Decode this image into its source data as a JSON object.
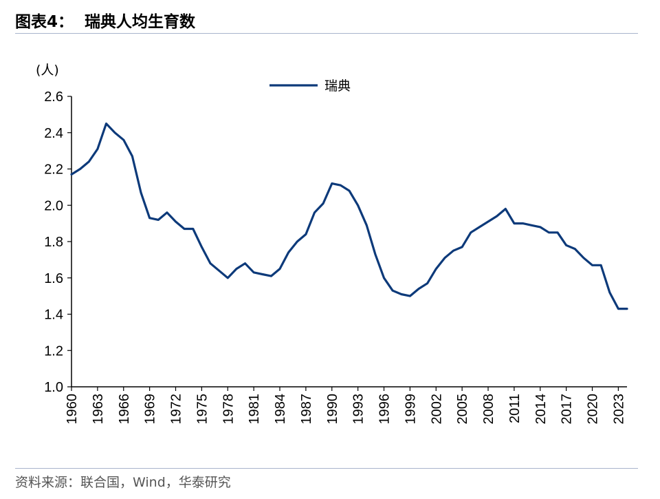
{
  "header": {
    "title": "图表4：  瑞典人均生育数"
  },
  "footer": {
    "source": "资料来源：联合国，Wind，华泰研究"
  },
  "chart_data": {
    "type": "line",
    "title": "瑞典人均生育数",
    "unit_label": "(人)",
    "ylim": [
      1.0,
      2.6
    ],
    "y_ticks": [
      "1.0",
      "1.2",
      "1.4",
      "1.6",
      "1.8",
      "2.0",
      "2.2",
      "2.4",
      "2.6"
    ],
    "x_ticks": [
      "1960",
      "1963",
      "1966",
      "1969",
      "1972",
      "1975",
      "1978",
      "1981",
      "1984",
      "1987",
      "1990",
      "1993",
      "1996",
      "1999",
      "2002",
      "2005",
      "2008",
      "2011",
      "2014",
      "2017",
      "2020",
      "2023"
    ],
    "legend_position": "top-center",
    "grid": false,
    "series": [
      {
        "name": "瑞典",
        "color": "#0d3a7a",
        "x": [
          1960,
          1961,
          1962,
          1963,
          1964,
          1965,
          1966,
          1967,
          1968,
          1969,
          1970,
          1971,
          1972,
          1973,
          1974,
          1975,
          1976,
          1977,
          1978,
          1979,
          1980,
          1981,
          1982,
          1983,
          1984,
          1985,
          1986,
          1987,
          1988,
          1989,
          1990,
          1991,
          1992,
          1993,
          1994,
          1995,
          1996,
          1997,
          1998,
          1999,
          2000,
          2001,
          2002,
          2003,
          2004,
          2005,
          2006,
          2007,
          2008,
          2009,
          2010,
          2011,
          2012,
          2013,
          2014,
          2015,
          2016,
          2017,
          2018,
          2019,
          2020,
          2021,
          2022,
          2023,
          2024
        ],
        "values": [
          2.17,
          2.2,
          2.24,
          2.31,
          2.45,
          2.4,
          2.36,
          2.27,
          2.07,
          1.93,
          1.92,
          1.96,
          1.91,
          1.87,
          1.87,
          1.77,
          1.68,
          1.64,
          1.6,
          1.65,
          1.68,
          1.63,
          1.62,
          1.61,
          1.65,
          1.74,
          1.8,
          1.84,
          1.96,
          2.01,
          2.12,
          2.11,
          2.08,
          2.0,
          1.89,
          1.73,
          1.6,
          1.53,
          1.51,
          1.5,
          1.54,
          1.57,
          1.65,
          1.71,
          1.75,
          1.77,
          1.85,
          1.88,
          1.91,
          1.94,
          1.98,
          1.9,
          1.9,
          1.89,
          1.88,
          1.85,
          1.85,
          1.78,
          1.76,
          1.71,
          1.67,
          1.67,
          1.52,
          1.43,
          1.43
        ]
      }
    ]
  }
}
